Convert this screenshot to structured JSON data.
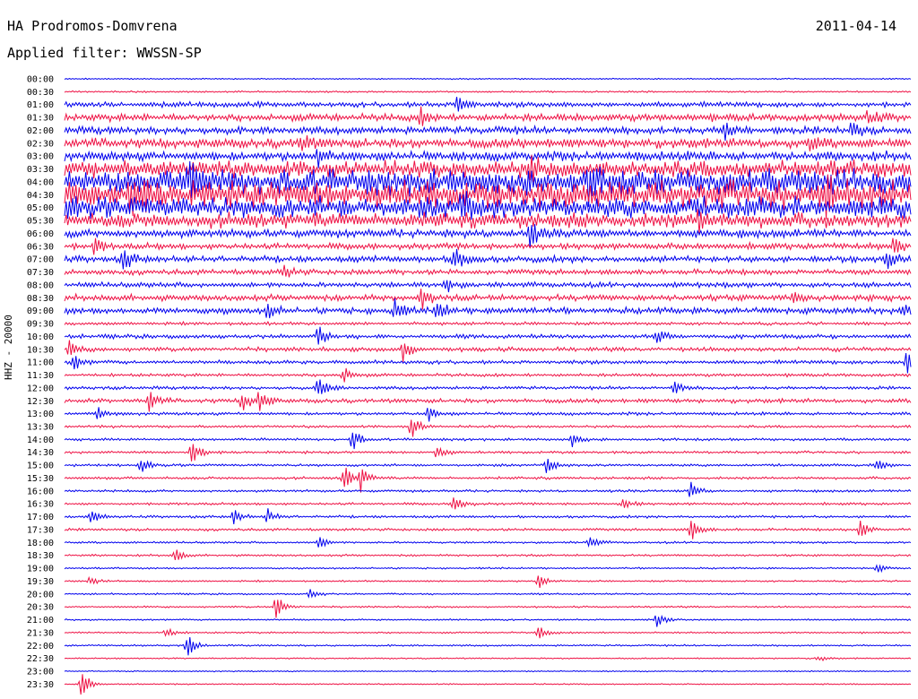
{
  "header": {
    "station": "HA Prodromos-Domvrena",
    "date": "2011-04-14",
    "filter": "Applied filter: WWSSN-SP"
  },
  "chart_data": {
    "type": "line",
    "title": "HA Prodromos-Domvrena",
    "ylabel": "HHZ - 20000",
    "row_interval_minutes": 30,
    "colors": [
      "#0000ee",
      "#ee1144"
    ],
    "rows": [
      {
        "label": "00:00",
        "color": "#0000ee",
        "noise": 0.6,
        "events": []
      },
      {
        "label": "00:30",
        "color": "#ee1144",
        "noise": 0.8,
        "events": []
      },
      {
        "label": "01:00",
        "color": "#0000ee",
        "noise": 2.5,
        "events": [
          {
            "t": 0.465,
            "amp": 13
          }
        ]
      },
      {
        "label": "01:30",
        "color": "#ee1144",
        "noise": 3.5,
        "events": [
          {
            "t": 0.42,
            "amp": 10
          },
          {
            "t": 0.95,
            "amp": 9
          }
        ]
      },
      {
        "label": "02:00",
        "color": "#0000ee",
        "noise": 3.5,
        "events": [
          {
            "t": 0.78,
            "amp": 12
          },
          {
            "t": 0.93,
            "amp": 9
          }
        ]
      },
      {
        "label": "02:30",
        "color": "#ee1144",
        "noise": 4.5,
        "events": [
          {
            "t": 0.28,
            "amp": 12
          },
          {
            "t": 0.88,
            "amp": 10
          }
        ]
      },
      {
        "label": "03:00",
        "color": "#0000ee",
        "noise": 4.5,
        "events": [
          {
            "t": 0.3,
            "amp": 10
          }
        ]
      },
      {
        "label": "03:30",
        "color": "#ee1144",
        "noise": 8,
        "events": [
          {
            "t": 0.55,
            "amp": 14
          }
        ]
      },
      {
        "label": "04:00",
        "color": "#0000ee",
        "noise": 12,
        "events": [
          {
            "t": 0.15,
            "amp": 18
          },
          {
            "t": 0.62,
            "amp": 16
          }
        ]
      },
      {
        "label": "04:30",
        "color": "#ee1144",
        "noise": 13,
        "events": [
          {
            "t": 0.08,
            "amp": 18
          },
          {
            "t": 0.9,
            "amp": 16
          }
        ]
      },
      {
        "label": "05:00",
        "color": "#0000ee",
        "noise": 10,
        "events": [
          {
            "t": 0.47,
            "amp": 16
          }
        ]
      },
      {
        "label": "05:30",
        "color": "#ee1144",
        "noise": 7,
        "events": [
          {
            "t": 0.75,
            "amp": 12
          }
        ]
      },
      {
        "label": "06:00",
        "color": "#0000ee",
        "noise": 4,
        "events": [
          {
            "t": 0.55,
            "amp": 14
          }
        ]
      },
      {
        "label": "06:30",
        "color": "#ee1144",
        "noise": 3,
        "events": [
          {
            "t": 0.035,
            "amp": 10
          },
          {
            "t": 0.98,
            "amp": 10
          }
        ]
      },
      {
        "label": "07:00",
        "color": "#0000ee",
        "noise": 3,
        "events": [
          {
            "t": 0.07,
            "amp": 14
          },
          {
            "t": 0.46,
            "amp": 18
          },
          {
            "t": 0.97,
            "amp": 14
          }
        ]
      },
      {
        "label": "07:30",
        "color": "#ee1144",
        "noise": 2.5,
        "events": [
          {
            "t": 0.26,
            "amp": 8
          }
        ]
      },
      {
        "label": "08:00",
        "color": "#0000ee",
        "noise": 2.5,
        "events": [
          {
            "t": 0.45,
            "amp": 9
          }
        ]
      },
      {
        "label": "08:30",
        "color": "#ee1144",
        "noise": 3,
        "events": [
          {
            "t": 0.42,
            "amp": 14
          },
          {
            "t": 0.86,
            "amp": 9
          }
        ]
      },
      {
        "label": "09:00",
        "color": "#0000ee",
        "noise": 3,
        "events": [
          {
            "t": 0.24,
            "amp": 10
          },
          {
            "t": 0.39,
            "amp": 12
          },
          {
            "t": 0.44,
            "amp": 12
          },
          {
            "t": 0.99,
            "amp": 10
          }
        ]
      },
      {
        "label": "09:30",
        "color": "#ee1144",
        "noise": 1.5,
        "events": []
      },
      {
        "label": "10:00",
        "color": "#0000ee",
        "noise": 2,
        "events": [
          {
            "t": 0.3,
            "amp": 12
          },
          {
            "t": 0.7,
            "amp": 9
          }
        ]
      },
      {
        "label": "10:30",
        "color": "#ee1144",
        "noise": 2,
        "events": [
          {
            "t": 0.005,
            "amp": 10
          },
          {
            "t": 0.4,
            "amp": 14
          }
        ]
      },
      {
        "label": "11:00",
        "color": "#0000ee",
        "noise": 1.8,
        "events": [
          {
            "t": 0.01,
            "amp": 12
          },
          {
            "t": 0.995,
            "amp": 16
          }
        ]
      },
      {
        "label": "11:30",
        "color": "#ee1144",
        "noise": 1.5,
        "events": [
          {
            "t": 0.33,
            "amp": 10
          }
        ]
      },
      {
        "label": "12:00",
        "color": "#0000ee",
        "noise": 1.5,
        "events": [
          {
            "t": 0.3,
            "amp": 16
          },
          {
            "t": 0.72,
            "amp": 8
          }
        ]
      },
      {
        "label": "12:30",
        "color": "#ee1144",
        "noise": 2,
        "events": [
          {
            "t": 0.1,
            "amp": 12
          },
          {
            "t": 0.21,
            "amp": 12
          },
          {
            "t": 0.23,
            "amp": 14
          }
        ]
      },
      {
        "label": "13:00",
        "color": "#0000ee",
        "noise": 1.5,
        "events": [
          {
            "t": 0.04,
            "amp": 8
          },
          {
            "t": 0.43,
            "amp": 8
          }
        ]
      },
      {
        "label": "13:30",
        "color": "#ee1144",
        "noise": 1.2,
        "events": [
          {
            "t": 0.41,
            "amp": 14
          }
        ]
      },
      {
        "label": "14:00",
        "color": "#0000ee",
        "noise": 1.2,
        "events": [
          {
            "t": 0.34,
            "amp": 14
          },
          {
            "t": 0.6,
            "amp": 8
          }
        ]
      },
      {
        "label": "14:30",
        "color": "#ee1144",
        "noise": 1.2,
        "events": [
          {
            "t": 0.15,
            "amp": 16
          },
          {
            "t": 0.44,
            "amp": 8
          }
        ]
      },
      {
        "label": "15:00",
        "color": "#0000ee",
        "noise": 1.2,
        "events": [
          {
            "t": 0.09,
            "amp": 8
          },
          {
            "t": 0.57,
            "amp": 10
          },
          {
            "t": 0.96,
            "amp": 8
          }
        ]
      },
      {
        "label": "15:30",
        "color": "#ee1144",
        "noise": 1.2,
        "events": [
          {
            "t": 0.33,
            "amp": 18
          },
          {
            "t": 0.35,
            "amp": 14
          }
        ]
      },
      {
        "label": "16:00",
        "color": "#0000ee",
        "noise": 1.2,
        "events": [
          {
            "t": 0.74,
            "amp": 10
          }
        ]
      },
      {
        "label": "16:30",
        "color": "#ee1144",
        "noise": 1.2,
        "events": [
          {
            "t": 0.46,
            "amp": 12
          },
          {
            "t": 0.66,
            "amp": 8
          }
        ]
      },
      {
        "label": "17:00",
        "color": "#0000ee",
        "noise": 1.2,
        "events": [
          {
            "t": 0.03,
            "amp": 8
          },
          {
            "t": 0.2,
            "amp": 9
          },
          {
            "t": 0.24,
            "amp": 9
          }
        ]
      },
      {
        "label": "17:30",
        "color": "#ee1144",
        "noise": 1.2,
        "events": [
          {
            "t": 0.74,
            "amp": 16
          },
          {
            "t": 0.94,
            "amp": 12
          }
        ]
      },
      {
        "label": "18:00",
        "color": "#0000ee",
        "noise": 1,
        "events": [
          {
            "t": 0.3,
            "amp": 8
          },
          {
            "t": 0.62,
            "amp": 8
          }
        ]
      },
      {
        "label": "18:30",
        "color": "#ee1144",
        "noise": 1,
        "events": [
          {
            "t": 0.13,
            "amp": 8
          }
        ]
      },
      {
        "label": "19:00",
        "color": "#0000ee",
        "noise": 0.8,
        "events": [
          {
            "t": 0.96,
            "amp": 5
          }
        ]
      },
      {
        "label": "19:30",
        "color": "#ee1144",
        "noise": 0.8,
        "events": [
          {
            "t": 0.03,
            "amp": 5
          },
          {
            "t": 0.56,
            "amp": 8
          }
        ]
      },
      {
        "label": "20:00",
        "color": "#0000ee",
        "noise": 0.8,
        "events": [
          {
            "t": 0.29,
            "amp": 7
          }
        ]
      },
      {
        "label": "20:30",
        "color": "#ee1144",
        "noise": 0.8,
        "events": [
          {
            "t": 0.25,
            "amp": 18
          }
        ]
      },
      {
        "label": "21:00",
        "color": "#0000ee",
        "noise": 0.8,
        "events": [
          {
            "t": 0.7,
            "amp": 8
          }
        ]
      },
      {
        "label": "21:30",
        "color": "#ee1144",
        "noise": 0.8,
        "events": [
          {
            "t": 0.56,
            "amp": 9
          },
          {
            "t": 0.12,
            "amp": 6
          }
        ]
      },
      {
        "label": "22:00",
        "color": "#0000ee",
        "noise": 0.8,
        "events": [
          {
            "t": 0.145,
            "amp": 13
          }
        ]
      },
      {
        "label": "22:30",
        "color": "#ee1144",
        "noise": 0.6,
        "events": [
          {
            "t": 0.89,
            "amp": 4
          }
        ]
      },
      {
        "label": "23:00",
        "color": "#0000ee",
        "noise": 0.6,
        "events": []
      },
      {
        "label": "23:30",
        "color": "#ee1144",
        "noise": 0.6,
        "events": [
          {
            "t": 0.02,
            "amp": 20
          }
        ]
      }
    ]
  }
}
